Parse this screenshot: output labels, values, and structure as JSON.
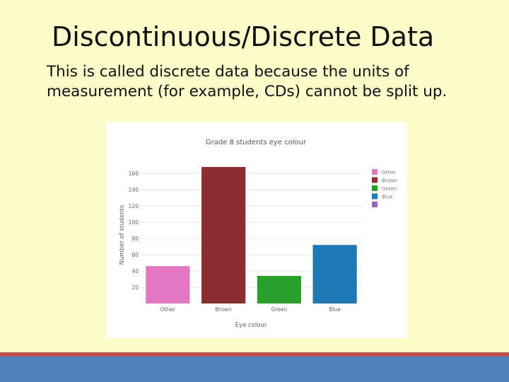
{
  "slide": {
    "title": "Discontinuous/Discrete Data",
    "body": "This is called discrete data because the units of measurement (for example, CDs) cannot be split up."
  },
  "chart_data": {
    "type": "bar",
    "title": "Grade 8 students eye colour",
    "xlabel": "Eye colour",
    "ylabel": "Number of students",
    "categories": [
      "Other",
      "Brown",
      "Green",
      "Blue"
    ],
    "values": [
      46,
      168,
      34,
      72
    ],
    "colors": [
      "#e377c2",
      "#8c2d32",
      "#2ca02c",
      "#1f77b4"
    ],
    "yticks": [
      20,
      40,
      60,
      80,
      100,
      120,
      140,
      160
    ],
    "ylim": [
      0,
      175
    ],
    "grid": true,
    "legend": {
      "placement": "top-right",
      "entries": [
        {
          "label": "Other",
          "color": "#e377c2"
        },
        {
          "label": "Brown",
          "color": "#8c2d32"
        },
        {
          "label": "Green",
          "color": "#2ca02c"
        },
        {
          "label": "Blue",
          "color": "#1f77b4"
        },
        {
          "label": "",
          "color": "#9467bd"
        }
      ]
    }
  }
}
